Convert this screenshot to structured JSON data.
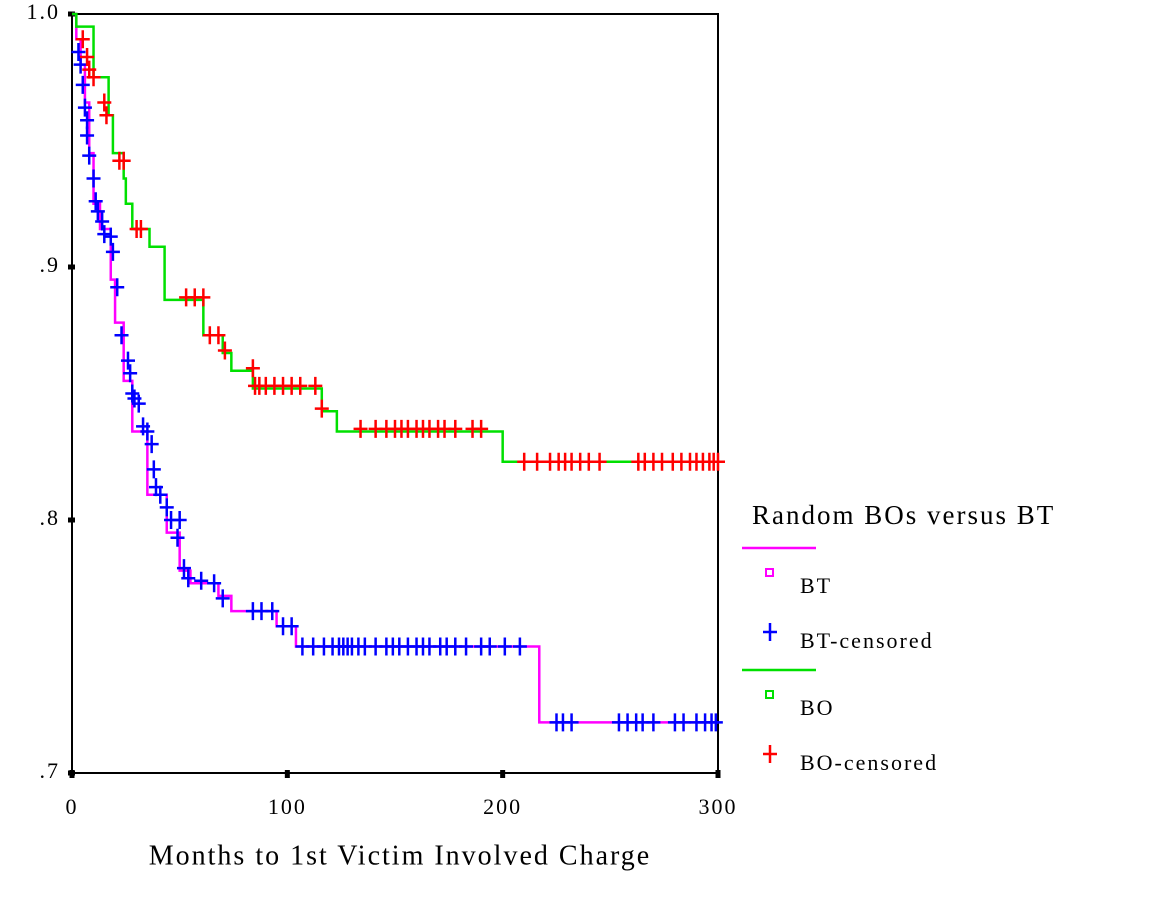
{
  "chart_data": {
    "type": "step",
    "xlabel": "Months to 1st Victim Involved Charge",
    "legend_title": "Random BOs versus BT",
    "xlim": [
      0,
      300
    ],
    "xticks": [
      0,
      100,
      200,
      300
    ],
    "ylim": [
      0.7,
      1.0
    ],
    "yticks": [
      {
        "value": 0.7,
        "label": ".7"
      },
      {
        "value": 0.8,
        "label": ".8"
      },
      {
        "value": 0.9,
        "label": ".9"
      },
      {
        "value": 1.0,
        "label": "1.0"
      }
    ],
    "series": [
      {
        "name": "BT",
        "color": "#ff00ff",
        "mark": "step",
        "x": [
          0,
          2,
          4,
          6,
          8,
          10,
          13,
          18,
          20,
          24,
          28,
          35,
          44,
          50,
          55,
          68,
          74,
          95,
          104,
          217,
          300
        ],
        "values": [
          1.0,
          0.99,
          0.98,
          0.965,
          0.945,
          0.925,
          0.915,
          0.895,
          0.878,
          0.855,
          0.835,
          0.81,
          0.795,
          0.78,
          0.775,
          0.77,
          0.764,
          0.758,
          0.75,
          0.72,
          0.72
        ]
      },
      {
        "name": "BT-censored",
        "color": "#0000ff",
        "mark": "plus",
        "x": [
          3,
          4,
          5,
          6,
          7,
          7,
          8,
          10,
          11,
          12,
          14,
          15,
          18,
          19,
          21,
          23,
          26,
          27,
          28,
          29,
          31,
          33,
          35,
          37,
          38,
          39,
          41,
          44,
          46,
          50,
          49,
          52,
          54,
          60,
          66,
          70,
          84,
          88,
          93,
          98,
          102,
          107,
          112,
          117,
          121,
          124,
          126,
          128,
          130,
          133,
          136,
          141,
          146,
          149,
          152,
          156,
          160,
          163,
          166,
          171,
          174,
          178,
          183,
          190,
          194,
          201,
          208,
          225,
          228,
          232,
          254,
          258,
          262,
          265,
          270,
          280,
          284,
          290,
          294,
          297,
          299
        ],
        "values": [
          0.985,
          0.98,
          0.972,
          0.963,
          0.958,
          0.952,
          0.944,
          0.935,
          0.926,
          0.922,
          0.918,
          0.913,
          0.912,
          0.906,
          0.892,
          0.873,
          0.863,
          0.858,
          0.85,
          0.848,
          0.846,
          0.837,
          0.835,
          0.83,
          0.82,
          0.813,
          0.81,
          0.805,
          0.8,
          0.8,
          0.793,
          0.781,
          0.777,
          0.776,
          0.775,
          0.769,
          0.764,
          0.764,
          0.764,
          0.758,
          0.758,
          0.75,
          0.75,
          0.75,
          0.75,
          0.75,
          0.75,
          0.75,
          0.75,
          0.75,
          0.75,
          0.75,
          0.75,
          0.75,
          0.75,
          0.75,
          0.75,
          0.75,
          0.75,
          0.75,
          0.75,
          0.75,
          0.75,
          0.75,
          0.75,
          0.75,
          0.75,
          0.72,
          0.72,
          0.72,
          0.72,
          0.72,
          0.72,
          0.72,
          0.72,
          0.72,
          0.72,
          0.72,
          0.72,
          0.72,
          0.72
        ]
      },
      {
        "name": "BO",
        "color": "#00e000",
        "mark": "step",
        "x": [
          0,
          2,
          10,
          17,
          19,
          24,
          25,
          28,
          36,
          43,
          61,
          70,
          74,
          84,
          116,
          123,
          200,
          300
        ],
        "values": [
          1.0,
          0.995,
          0.975,
          0.96,
          0.945,
          0.935,
          0.925,
          0.915,
          0.908,
          0.887,
          0.873,
          0.866,
          0.859,
          0.852,
          0.843,
          0.835,
          0.823,
          0.823
        ]
      },
      {
        "name": "BO-censored",
        "color": "#ff0000",
        "mark": "plus",
        "x": [
          5,
          7,
          8,
          10,
          15,
          16,
          22,
          24,
          30,
          32,
          53,
          57,
          61,
          64,
          68,
          71,
          84,
          85,
          87,
          90,
          94,
          98,
          102,
          106,
          113,
          116,
          134,
          141,
          146,
          150,
          153,
          156,
          160,
          163,
          166,
          170,
          173,
          178,
          186,
          190,
          210,
          216,
          222,
          226,
          229,
          232,
          236,
          240,
          245,
          263,
          266,
          270,
          274,
          279,
          283,
          287,
          290,
          293,
          296,
          298,
          300
        ],
        "values": [
          0.99,
          0.983,
          0.978,
          0.975,
          0.965,
          0.96,
          0.942,
          0.942,
          0.915,
          0.915,
          0.888,
          0.888,
          0.888,
          0.873,
          0.873,
          0.867,
          0.86,
          0.853,
          0.853,
          0.853,
          0.853,
          0.853,
          0.853,
          0.853,
          0.853,
          0.844,
          0.836,
          0.836,
          0.836,
          0.836,
          0.836,
          0.836,
          0.836,
          0.836,
          0.836,
          0.836,
          0.836,
          0.836,
          0.836,
          0.836,
          0.823,
          0.823,
          0.823,
          0.823,
          0.823,
          0.823,
          0.823,
          0.823,
          0.823,
          0.823,
          0.823,
          0.823,
          0.823,
          0.823,
          0.823,
          0.823,
          0.823,
          0.823,
          0.823,
          0.823,
          0.823
        ]
      }
    ]
  }
}
